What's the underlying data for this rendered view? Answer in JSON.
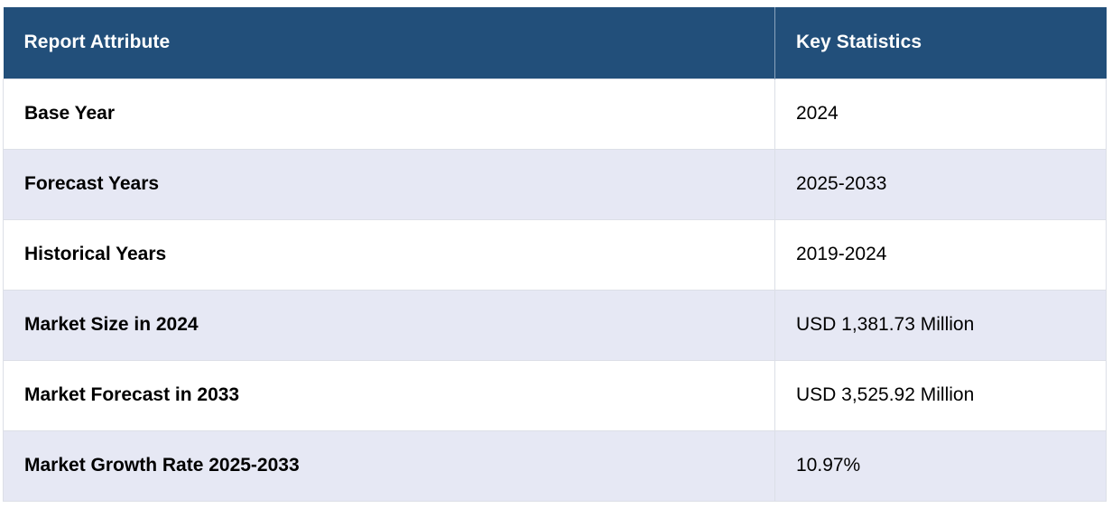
{
  "table": {
    "headers": {
      "attribute": "Report Attribute",
      "statistics": "Key Statistics"
    },
    "rows": [
      {
        "attribute": "Base Year",
        "value": "2024"
      },
      {
        "attribute": "Forecast Years",
        "value": "2025-2033"
      },
      {
        "attribute": "Historical Years",
        "value": "2019-2024"
      },
      {
        "attribute": "Market Size in 2024",
        "value": "USD 1,381.73 Million"
      },
      {
        "attribute": "Market Forecast in 2033",
        "value": "USD 3,525.92 Million"
      },
      {
        "attribute": "Market Growth Rate 2025-2033",
        "value": "10.97%"
      }
    ]
  },
  "colors": {
    "header_background": "#224f7a",
    "header_text": "#ffffff",
    "row_alt_background": "#e6e8f4",
    "row_background": "#ffffff"
  }
}
